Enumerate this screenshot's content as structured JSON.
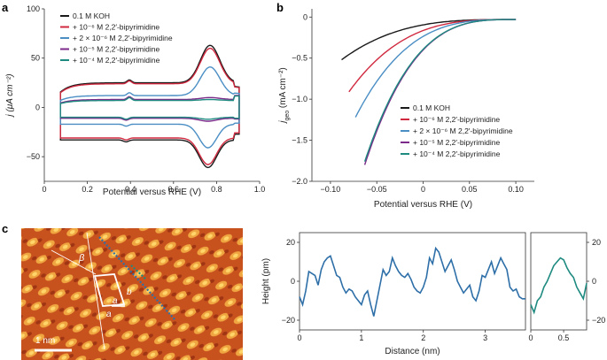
{
  "panels": {
    "a": "a",
    "b": "b",
    "c": "c"
  },
  "colors": {
    "koh": "#1a1a1a",
    "m6": "#d0293f",
    "m6x2": "#4a8ec4",
    "m5": "#7b2a8a",
    "m4": "#1e8a80",
    "stm": "#2e6fa8",
    "stm_zoom": "#1e8a80"
  },
  "legend": [
    {
      "key": "koh",
      "label": "0.1 M KOH"
    },
    {
      "key": "m6",
      "label": "+ 10⁻⁶ M 2,2′-bipyrimidine"
    },
    {
      "key": "m6x2",
      "label": "+ 2 × 10⁻⁶ M 2,2′-bipyrimidine"
    },
    {
      "key": "m5",
      "label": "+ 10⁻⁵ M 2,2′-bipyrimidine"
    },
    {
      "key": "m4",
      "label": "+ 10⁻⁴ M 2,2′-bipyrimidine"
    }
  ],
  "stm": {
    "scale_label": "1 nm",
    "beta": "β",
    "a1": "a",
    "a2": "a",
    "b": "b"
  },
  "chart_data": [
    {
      "id": "a",
      "type": "line",
      "title": "",
      "xlabel": "Potential versus RHE (V)",
      "ylabel": "j (μA cm⁻²)",
      "xlim": [
        0,
        1.0
      ],
      "ylim": [
        -75,
        100
      ],
      "xticks": [
        0,
        0.2,
        0.4,
        0.6,
        0.8,
        1.0
      ],
      "xticklabels": [
        "0",
        "0.2",
        "0.4",
        "0.6",
        "0.8",
        "1.0"
      ],
      "yticks": [
        -50,
        0,
        50,
        100
      ],
      "yticklabels": [
        "−50",
        "0",
        "50",
        "100"
      ],
      "series": [
        {
          "key": "koh",
          "name": "0.1 M KOH",
          "peak_anodic": 65,
          "peak_cathodic": -61,
          "upper_base": 27,
          "lower_base": -33
        },
        {
          "key": "m6",
          "name": "+ 10⁻⁶ M 2,2′-bipyrimidine",
          "peak_anodic": 62,
          "peak_cathodic": -58,
          "upper_base": 26,
          "lower_base": -31
        },
        {
          "key": "m6x2",
          "name": "+ 2 × 10⁻⁶ M 2,2′-bipyrimidine",
          "peak_anodic": 43,
          "peak_cathodic": -41,
          "upper_base": 14,
          "lower_base": -17
        },
        {
          "key": "m5",
          "name": "+ 10⁻⁵ M 2,2′-bipyrimidine",
          "peak_anodic": 12,
          "peak_cathodic": -14,
          "upper_base": 10,
          "lower_base": -11
        },
        {
          "key": "m4",
          "name": "+ 10⁻⁴ M 2,2′-bipyrimidine",
          "peak_anodic": 10,
          "peak_cathodic": -12,
          "upper_base": 9,
          "lower_base": -10
        }
      ]
    },
    {
      "id": "b",
      "type": "line",
      "title": "",
      "xlabel": "Potential versus RHE (V)",
      "ylabel_main": "j",
      "ylabel_sub": "geo",
      "ylabel_unit": " (mA cm⁻²)",
      "xlim": [
        -0.12,
        0.12
      ],
      "ylim": [
        -2.0,
        0.1
      ],
      "xticks": [
        -0.1,
        -0.05,
        0,
        0.05,
        0.1
      ],
      "xticklabels": [
        "−0.10",
        "−0.05",
        "0",
        "0.05",
        "0.10"
      ],
      "yticks": [
        0,
        -0.5,
        -1.0,
        -1.5,
        -2.0
      ],
      "yticklabels": [
        "0",
        "−0.5",
        "−1.0",
        "−1.5",
        "−2.0"
      ],
      "series": [
        {
          "key": "koh",
          "name": "0.1 M KOH",
          "x_start": -0.088,
          "j_start": -0.52
        },
        {
          "key": "m6",
          "name": "+ 10⁻⁶ M 2,2′-bipyrimidine",
          "x_start": -0.08,
          "j_start": -0.91
        },
        {
          "key": "m6x2",
          "name": "+ 2 × 10⁻⁶ M 2,2′-bipyrimidine",
          "x_start": -0.073,
          "j_start": -1.22
        },
        {
          "key": "m5",
          "name": "+ 10⁻⁵ M 2,2′-bipyrimidine",
          "x_start": -0.063,
          "j_start": -1.8
        },
        {
          "key": "m4",
          "name": "+ 10⁻⁴ M 2,2′-bipyrimidine",
          "x_start": -0.063,
          "j_start": -1.76
        }
      ]
    },
    {
      "id": "c1",
      "type": "line",
      "xlabel": "Distance (nm)",
      "ylabel": "Height (pm)",
      "xlim": [
        0,
        3.65
      ],
      "ylim": [
        -25,
        25
      ],
      "xticks": [
        0,
        1,
        2,
        3
      ],
      "xticklabels": [
        "0",
        "1",
        "2",
        "3"
      ],
      "yticks": [
        20,
        0,
        -20
      ],
      "yticklabels": [
        "20",
        "0",
        "−20"
      ],
      "x": [
        0,
        0.05,
        0.1,
        0.15,
        0.2,
        0.25,
        0.3,
        0.35,
        0.4,
        0.45,
        0.5,
        0.55,
        0.6,
        0.65,
        0.7,
        0.75,
        0.8,
        0.85,
        0.9,
        0.95,
        1.0,
        1.05,
        1.1,
        1.15,
        1.2,
        1.25,
        1.3,
        1.35,
        1.4,
        1.45,
        1.5,
        1.55,
        1.6,
        1.65,
        1.7,
        1.75,
        1.8,
        1.85,
        1.9,
        1.95,
        2.0,
        2.05,
        2.1,
        2.15,
        2.2,
        2.25,
        2.3,
        2.35,
        2.4,
        2.45,
        2.5,
        2.55,
        2.6,
        2.65,
        2.7,
        2.75,
        2.8,
        2.85,
        2.9,
        2.95,
        3.0,
        3.05,
        3.1,
        3.15,
        3.2,
        3.25,
        3.3,
        3.35,
        3.4,
        3.45,
        3.5,
        3.55,
        3.6,
        3.65
      ],
      "y": [
        -8,
        -12,
        -5,
        5,
        4,
        3,
        -2,
        6,
        10,
        12,
        13,
        8,
        3,
        2,
        -3,
        -6,
        -4,
        -5,
        -8,
        -10,
        -12,
        -7,
        -5,
        -12,
        -18,
        -10,
        -2,
        6,
        3,
        5,
        12,
        8,
        5,
        3,
        2,
        4,
        1,
        -3,
        -5,
        -6,
        -3,
        2,
        12,
        9,
        17,
        15,
        10,
        5,
        8,
        11,
        6,
        0,
        -3,
        -6,
        -4,
        -2,
        -8,
        -10,
        -5,
        3,
        2,
        6,
        10,
        4,
        8,
        12,
        9,
        6,
        -3,
        -5,
        -4,
        -8,
        -9,
        -9
      ]
    },
    {
      "id": "c2",
      "type": "line",
      "xlim": [
        0,
        0.85
      ],
      "ylim": [
        -25,
        25
      ],
      "xticks": [
        0,
        0.5
      ],
      "xticklabels": [
        "0",
        "0.5"
      ],
      "yticks": [
        20,
        0,
        -20
      ],
      "yticklabels": [
        "20",
        "0",
        "−20"
      ],
      "x": [
        0,
        0.05,
        0.1,
        0.15,
        0.2,
        0.25,
        0.3,
        0.35,
        0.4,
        0.45,
        0.5,
        0.55,
        0.6,
        0.65,
        0.7,
        0.75,
        0.8,
        0.85
      ],
      "y": [
        -12,
        -16,
        -10,
        -8,
        -3,
        0,
        4,
        8,
        10,
        12,
        11,
        7,
        4,
        2,
        -3,
        -6,
        -9,
        -1
      ]
    }
  ]
}
